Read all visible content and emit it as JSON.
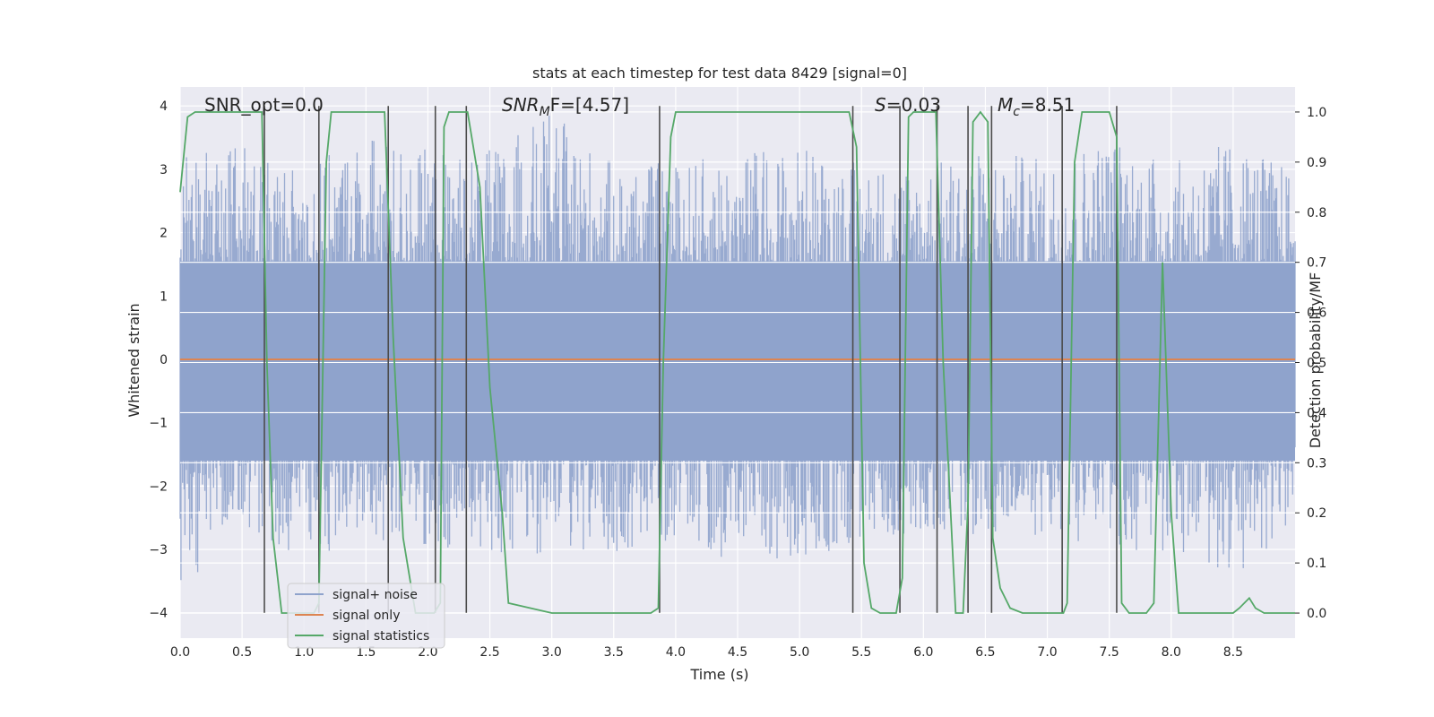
{
  "chart_data": {
    "type": "line",
    "title": "stats at each timestep for test data 8429 [signal=0]",
    "xlabel": "Time (s)",
    "ylabel_left": "Whitened strain",
    "ylabel_right": "Detection probability/MF",
    "xlim": [
      0,
      9.0
    ],
    "ylim_left": [
      -4.4,
      4.3
    ],
    "ylim_right": [
      -0.05,
      1.05
    ],
    "x_ticks": [
      "0.0",
      "0.5",
      "1.0",
      "1.5",
      "2.0",
      "2.5",
      "3.0",
      "3.5",
      "4.0",
      "4.5",
      "5.0",
      "5.5",
      "6.0",
      "6.5",
      "7.0",
      "7.5",
      "8.0",
      "8.5"
    ],
    "y_ticks_left": [
      "−4",
      "−3",
      "−2",
      "−1",
      "0",
      "1",
      "2",
      "3",
      "4"
    ],
    "y_ticks_right": [
      "0.0",
      "0.1",
      "0.2",
      "0.3",
      "0.4",
      "0.5",
      "0.6",
      "0.7",
      "0.8",
      "0.9",
      "1.0"
    ],
    "grid": true,
    "colors": {
      "signal_noise": "#8fa3cc",
      "signal_only": "#dd8452",
      "signal_statistics": "#55a868",
      "markers": "#4c4c4c",
      "background": "#eaeaf2"
    },
    "annotations": {
      "snr_opt": "SNR_opt=0.0",
      "snr_mf_italic": "SNR",
      "snr_mf_sub": "M",
      "snr_mf_tail": "F=[4.57]",
      "s_italic": "S",
      "s_tail": "=0.03",
      "mc_italic": "M",
      "mc_sub": "c",
      "mc_tail": "=8.51"
    },
    "legend": {
      "position": "lower-left",
      "entries": [
        "signal+ noise",
        "signal only",
        "signal statistics"
      ]
    },
    "series": [
      {
        "name": "signal statistics",
        "axis": "right",
        "x": [
          0.0,
          0.06,
          0.12,
          0.5,
          0.66,
          0.7,
          0.75,
          0.82,
          1.08,
          1.12,
          1.18,
          1.22,
          1.65,
          1.72,
          1.8,
          1.9,
          2.05,
          2.1,
          2.13,
          2.17,
          2.32,
          2.42,
          2.5,
          2.6,
          2.65,
          3.0,
          3.5,
          3.8,
          3.86,
          3.9,
          3.96,
          4.0,
          5.3,
          5.4,
          5.46,
          5.52,
          5.58,
          5.65,
          5.78,
          5.83,
          5.88,
          5.92,
          6.1,
          6.16,
          6.26,
          6.32,
          6.36,
          6.4,
          6.46,
          6.52,
          6.56,
          6.62,
          6.7,
          6.8,
          7.13,
          7.16,
          7.22,
          7.28,
          7.5,
          7.56,
          7.6,
          7.66,
          7.8,
          7.86,
          7.93,
          8.0,
          8.06,
          8.5,
          8.55,
          8.63,
          8.68,
          8.75,
          9.0
        ],
        "y": [
          0.84,
          0.99,
          1.0,
          1.0,
          1.0,
          0.5,
          0.15,
          0.0,
          0.0,
          0.02,
          0.9,
          1.0,
          1.0,
          0.55,
          0.15,
          0.0,
          0.0,
          0.02,
          0.97,
          1.0,
          1.0,
          0.85,
          0.45,
          0.2,
          0.02,
          0.0,
          0.0,
          0.0,
          0.01,
          0.5,
          0.95,
          1.0,
          1.0,
          1.0,
          0.93,
          0.1,
          0.01,
          0.0,
          0.0,
          0.07,
          0.99,
          1.0,
          1.0,
          0.5,
          0.0,
          0.0,
          0.22,
          0.98,
          1.0,
          0.98,
          0.15,
          0.05,
          0.01,
          0.0,
          0.0,
          0.02,
          0.9,
          1.0,
          1.0,
          0.95,
          0.02,
          0.0,
          0.0,
          0.02,
          0.7,
          0.2,
          0.0,
          0.0,
          0.01,
          0.03,
          0.01,
          0.0,
          0.0
        ]
      },
      {
        "name": "signal only",
        "axis": "left",
        "x": [
          0.0,
          9.0
        ],
        "y": [
          0.0,
          0.0
        ]
      }
    ],
    "noise_envelope": {
      "x": [
        0,
        0.5,
        1.0,
        1.5,
        2.0,
        2.5,
        3.0,
        3.5,
        4.0,
        4.5,
        5.0,
        5.5,
        6.0,
        6.5,
        7.0,
        7.5,
        8.0,
        8.5,
        9.0
      ],
      "upper": [
        3.2,
        3.5,
        3.0,
        3.6,
        3.3,
        3.3,
        3.9,
        3.1,
        3.1,
        3.3,
        3.4,
        3.1,
        3.1,
        3.3,
        3.2,
        3.6,
        3.1,
        3.5,
        3.0
      ],
      "lower": [
        -3.7,
        -2.6,
        -3.2,
        -2.8,
        -3.0,
        -3.1,
        -3.1,
        -3.1,
        -3.0,
        -3.2,
        -3.3,
        -2.9,
        -2.7,
        -2.8,
        -2.8,
        -3.0,
        -3.1,
        -3.5,
        -2.6
      ]
    },
    "vertical_markers": {
      "ymin": -4.0,
      "ymax": 4.0,
      "x": [
        0.68,
        1.12,
        1.68,
        2.06,
        2.31,
        3.87,
        5.43,
        5.81,
        6.11,
        6.36,
        6.55,
        7.12,
        7.56
      ]
    }
  }
}
